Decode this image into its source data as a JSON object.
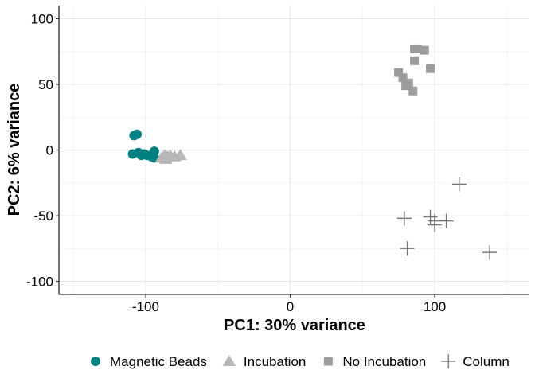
{
  "chart_data": {
    "type": "scatter",
    "title": "",
    "xlabel": "PC1: 30% variance",
    "ylabel": "PC2: 6% variance",
    "xlim": [
      -160,
      165
    ],
    "ylim": [
      -110,
      110
    ],
    "x_ticks": [
      -100,
      0,
      100
    ],
    "y_ticks": [
      -100,
      -50,
      0,
      50,
      100
    ],
    "grid": true,
    "legend_position": "bottom",
    "series": [
      {
        "name": "Magnetic Beads",
        "marker": "circle",
        "color": "#008080",
        "points": [
          [
            -108,
            11
          ],
          [
            -106,
            12
          ],
          [
            -109,
            -3
          ],
          [
            -105,
            -2
          ],
          [
            -103,
            -4
          ],
          [
            -101,
            -3
          ],
          [
            -99,
            -4
          ],
          [
            -94,
            -1
          ],
          [
            -94,
            -6
          ],
          [
            -96,
            -5
          ]
        ]
      },
      {
        "name": "Incubation",
        "marker": "triangle",
        "color": "#b8b8b8",
        "points": [
          [
            -89,
            -6
          ],
          [
            -87,
            -4
          ],
          [
            -85,
            -5
          ],
          [
            -86,
            -7
          ],
          [
            -83,
            -4
          ],
          [
            -80,
            -5
          ],
          [
            -76,
            -4
          ]
        ]
      },
      {
        "name": "No Incubation",
        "marker": "square",
        "color": "#9c9c9c",
        "points": [
          [
            86,
            77
          ],
          [
            88,
            77
          ],
          [
            93,
            76
          ],
          [
            86,
            68
          ],
          [
            75,
            59
          ],
          [
            78,
            55
          ],
          [
            80,
            49
          ],
          [
            82,
            51
          ],
          [
            85,
            45
          ],
          [
            97,
            62
          ]
        ]
      },
      {
        "name": "Column",
        "marker": "plus",
        "color": "#737373",
        "points": [
          [
            117,
            -26
          ],
          [
            79,
            -52
          ],
          [
            97,
            -51
          ],
          [
            100,
            -54
          ],
          [
            108,
            -54
          ],
          [
            100,
            -57
          ],
          [
            81,
            -75
          ],
          [
            138,
            -78
          ]
        ]
      }
    ]
  }
}
